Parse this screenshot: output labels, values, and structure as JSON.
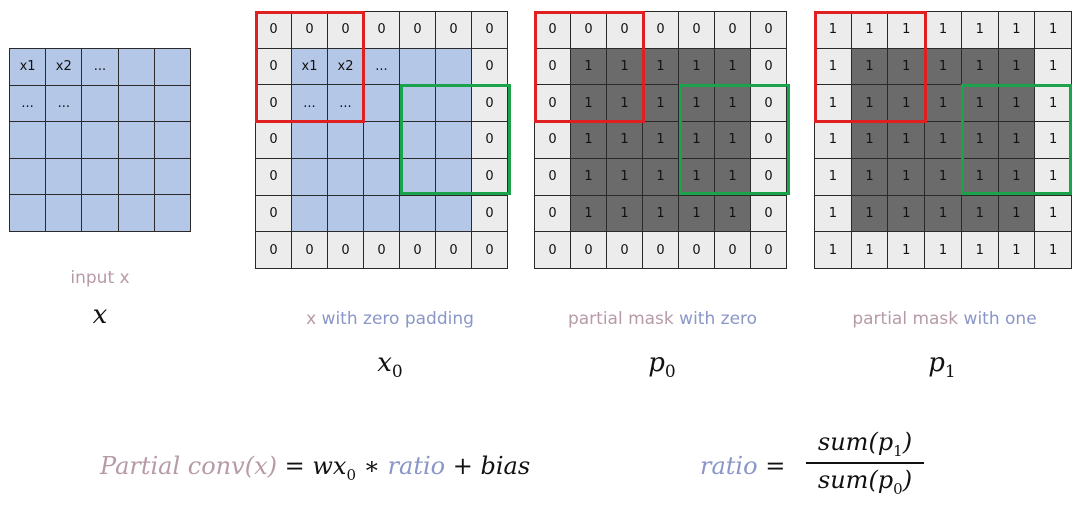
{
  "panels": [
    {
      "label_parts": [
        {
          "text": "input x",
          "tone": "pink"
        }
      ],
      "symbol": "x",
      "subscript": ""
    },
    {
      "label_parts": [
        {
          "text": "x ",
          "tone": "pink"
        },
        {
          "text": "with zero padding",
          "tone": "blue"
        }
      ],
      "symbol": "x",
      "subscript": "0"
    },
    {
      "label_parts": [
        {
          "text": "partial mask ",
          "tone": "pink"
        },
        {
          "text": "with zero",
          "tone": "blue"
        }
      ],
      "symbol": "p",
      "subscript": "0"
    },
    {
      "label_parts": [
        {
          "text": "partial mask ",
          "tone": "pink"
        },
        {
          "text": "with one",
          "tone": "blue"
        }
      ],
      "symbol": "p",
      "subscript": "1"
    }
  ],
  "grids": {
    "input": [
      [
        "x1",
        "x2",
        "...",
        "",
        ""
      ],
      [
        "...",
        "...",
        "",
        "",
        ""
      ],
      [
        "",
        "",
        "",
        "",
        ""
      ],
      [
        "",
        "",
        "",
        "",
        ""
      ],
      [
        "",
        "",
        "",
        "",
        ""
      ]
    ],
    "x0": [
      [
        "0",
        "0",
        "0",
        "0",
        "0",
        "0",
        "0"
      ],
      [
        "0",
        "x1",
        "x2",
        "...",
        "",
        "",
        "0"
      ],
      [
        "0",
        "...",
        "...",
        "",
        "",
        "",
        "0"
      ],
      [
        "0",
        "",
        "",
        "",
        "",
        "",
        "0"
      ],
      [
        "0",
        "",
        "",
        "",
        "",
        "",
        "0"
      ],
      [
        "0",
        "",
        "",
        "",
        "",
        "",
        "0"
      ],
      [
        "0",
        "0",
        "0",
        "0",
        "0",
        "0",
        "0"
      ]
    ],
    "p0": [
      [
        "0",
        "0",
        "0",
        "0",
        "0",
        "0",
        "0"
      ],
      [
        "0",
        "1",
        "1",
        "1",
        "1",
        "1",
        "0"
      ],
      [
        "0",
        "1",
        "1",
        "1",
        "1",
        "1",
        "0"
      ],
      [
        "0",
        "1",
        "1",
        "1",
        "1",
        "1",
        "0"
      ],
      [
        "0",
        "1",
        "1",
        "1",
        "1",
        "1",
        "0"
      ],
      [
        "0",
        "1",
        "1",
        "1",
        "1",
        "1",
        "0"
      ],
      [
        "0",
        "0",
        "0",
        "0",
        "0",
        "0",
        "0"
      ]
    ],
    "p1": [
      [
        "1",
        "1",
        "1",
        "1",
        "1",
        "1",
        "1"
      ],
      [
        "1",
        "1",
        "1",
        "1",
        "1",
        "1",
        "1"
      ],
      [
        "1",
        "1",
        "1",
        "1",
        "1",
        "1",
        "1"
      ],
      [
        "1",
        "1",
        "1",
        "1",
        "1",
        "1",
        "1"
      ],
      [
        "1",
        "1",
        "1",
        "1",
        "1",
        "1",
        "1"
      ],
      [
        "1",
        "1",
        "1",
        "1",
        "1",
        "1",
        "1"
      ],
      [
        "1",
        "1",
        "1",
        "1",
        "1",
        "1",
        "1"
      ]
    ]
  },
  "formula": {
    "lhs_parts": [
      "Partial conv",
      "(x)"
    ],
    "rhs": "= wx",
    "rhs_sub": "0",
    "rhs_mid": " ∗ ",
    "rhs_ratio": "ratio",
    "rhs_tail": " + bias"
  },
  "ratio": {
    "name": "ratio",
    "eq": "=",
    "numerator": "sum(p",
    "numerator_sub": "1",
    "numerator_close": ")",
    "denominator": "sum(p",
    "denominator_sub": "0",
    "denominator_close": ")"
  },
  "colors": {
    "input_cell": "#b4c7e7",
    "pad_cell": "#ececec",
    "mask_inner": "#6b6b6b",
    "red_box": "#e02020",
    "green_box": "#1aa34a",
    "pink_text": "#b79aa8",
    "blue_text": "#8a96c8"
  }
}
